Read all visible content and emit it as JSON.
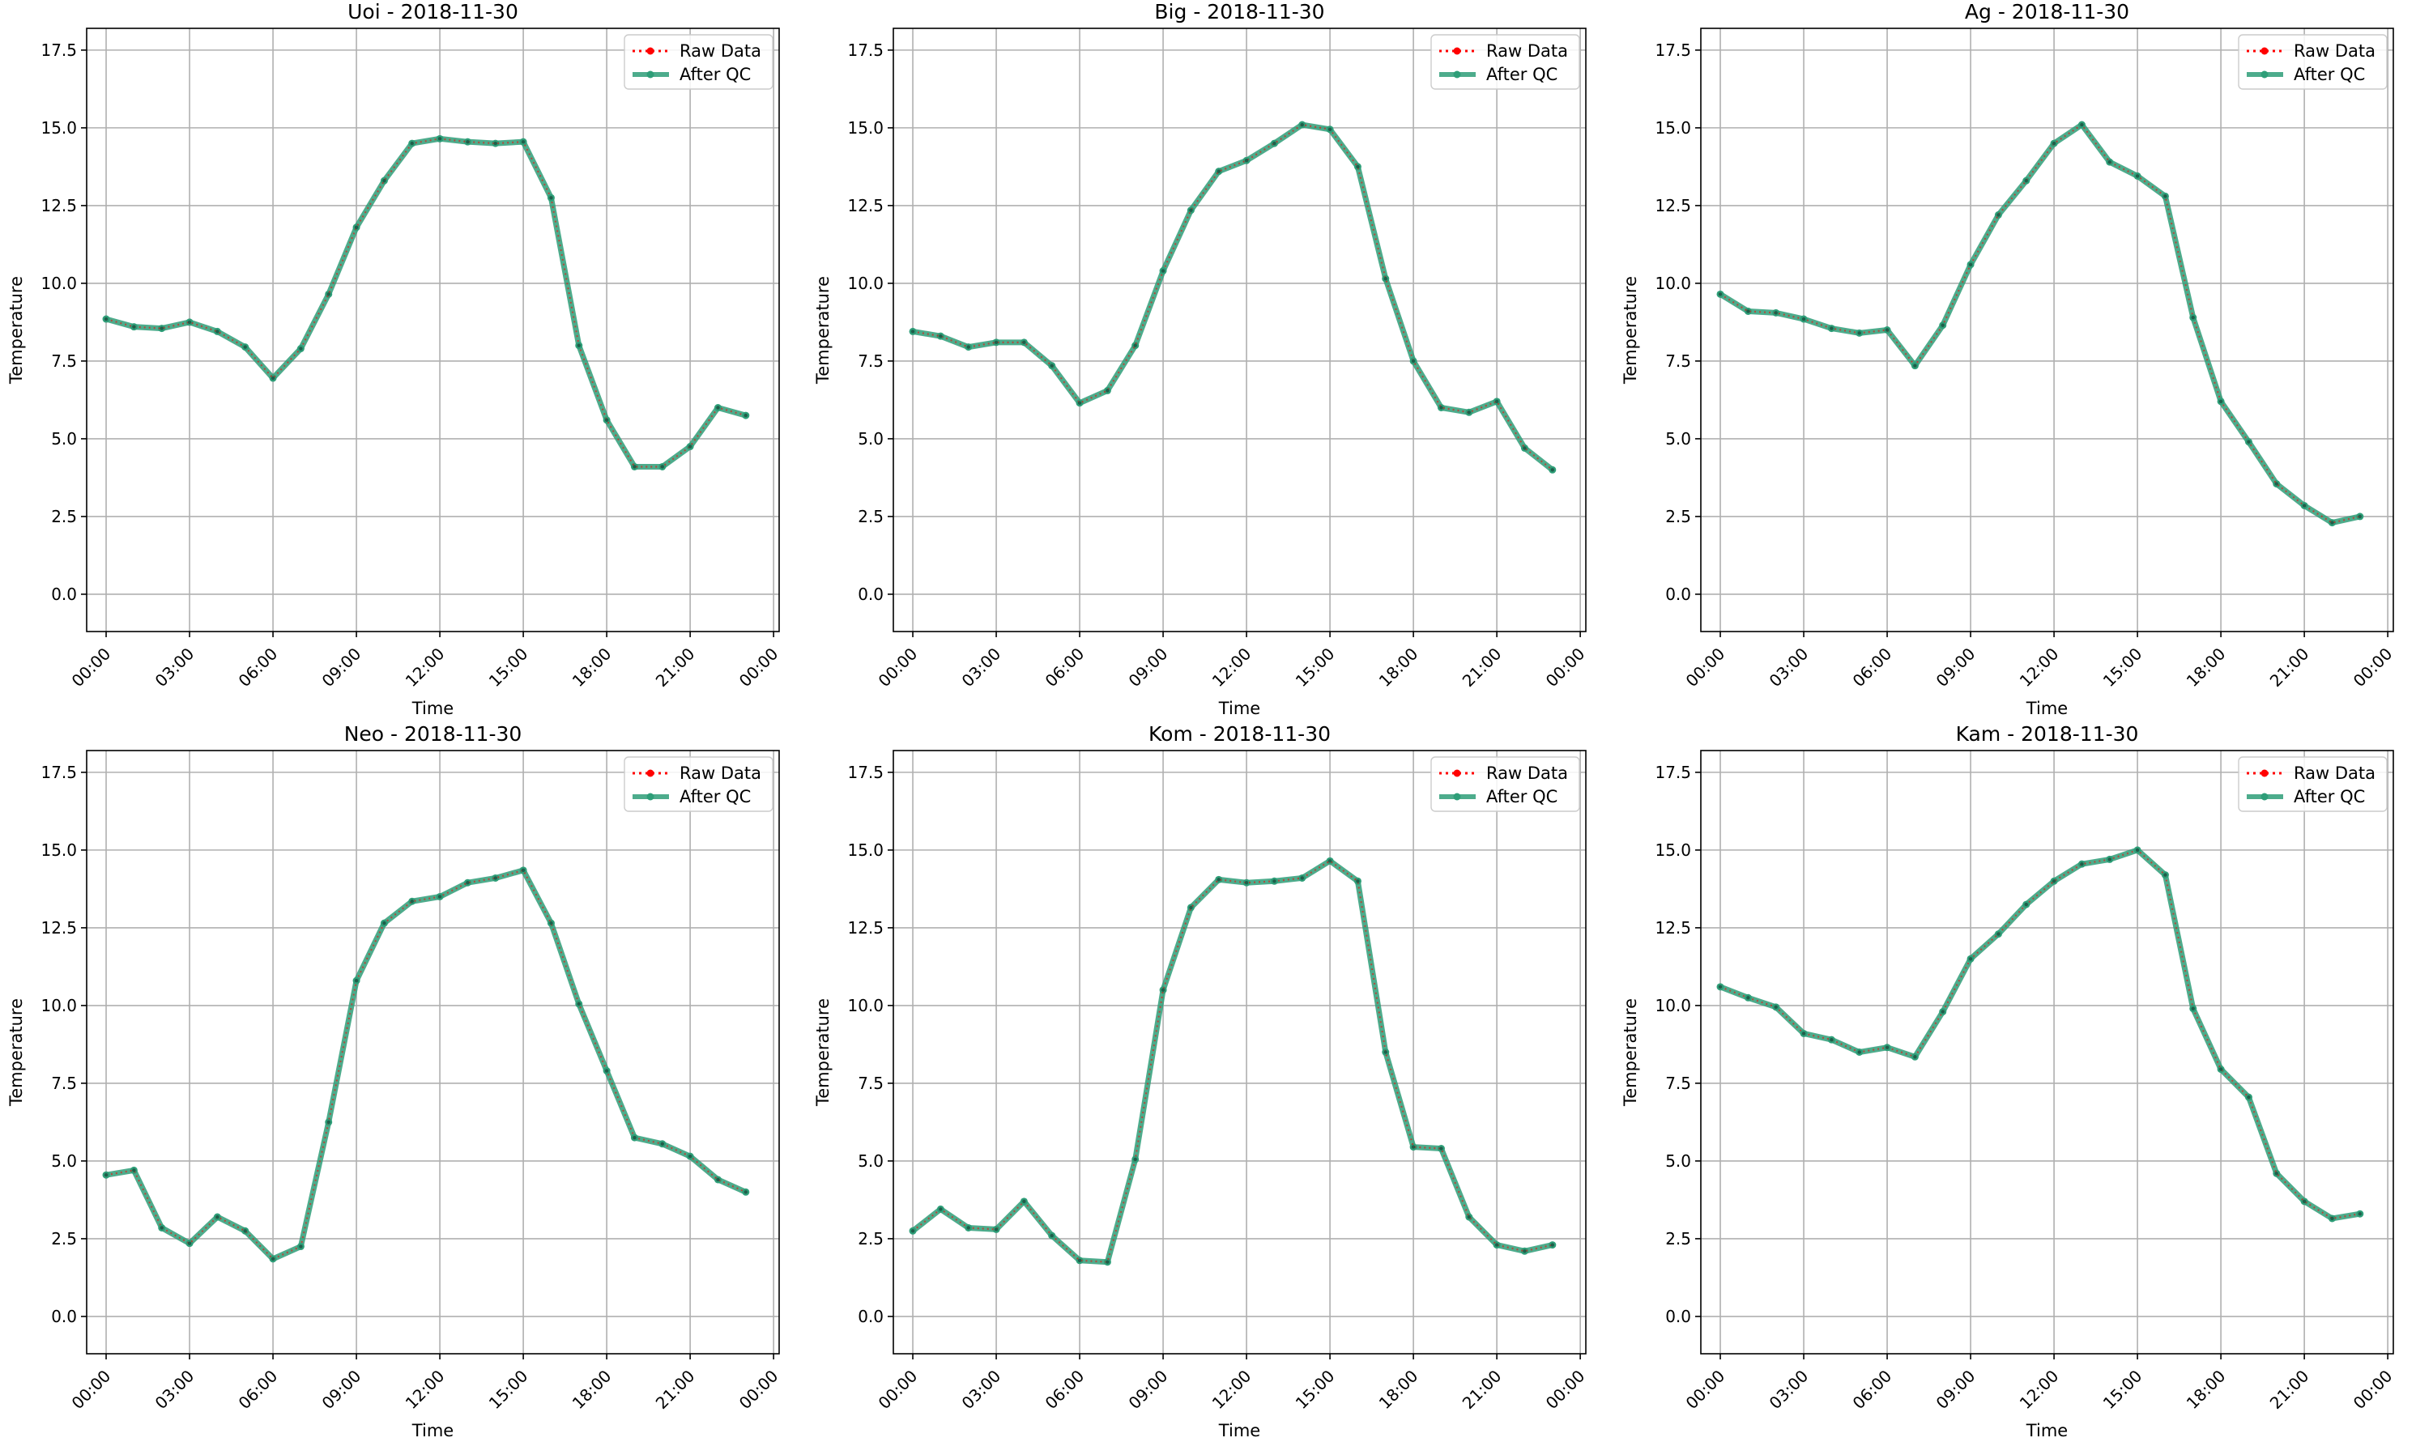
{
  "colors": {
    "raw": "#ff0000",
    "qc": "#2e9e78",
    "grid": "#b0b0b0",
    "axis": "#000000",
    "legend_border": "#cccccc"
  },
  "chart_data": [
    {
      "type": "line",
      "title": "Uoi - 2018-11-30",
      "xlabel": "Time",
      "ylabel": "Temperature",
      "ylim": [
        -1.2,
        18.2
      ],
      "xlim": [
        -0.7,
        24.2
      ],
      "grid": true,
      "legend": "top-right",
      "x": [
        0,
        1,
        2,
        3,
        4,
        5,
        6,
        7,
        8,
        9,
        10,
        11,
        12,
        13,
        14,
        15,
        16,
        17,
        18,
        19,
        20,
        21,
        22,
        23
      ],
      "x_ticks": [
        "00:00",
        "03:00",
        "06:00",
        "09:00",
        "12:00",
        "15:00",
        "18:00",
        "21:00",
        "00:00"
      ],
      "y_ticks": [
        "0.0",
        "2.5",
        "5.0",
        "7.5",
        "10.0",
        "12.5",
        "15.0",
        "17.5"
      ],
      "series": [
        {
          "name": "Raw Data",
          "values": [
            8.85,
            8.6,
            8.55,
            8.75,
            8.45,
            7.95,
            6.95,
            7.9,
            9.65,
            11.8,
            13.3,
            14.5,
            14.65,
            14.55,
            14.5,
            14.55,
            12.75,
            8.0,
            5.6,
            4.1,
            4.1,
            4.75,
            6.0,
            5.75
          ]
        },
        {
          "name": "After QC",
          "values": [
            8.85,
            8.6,
            8.55,
            8.75,
            8.45,
            7.95,
            6.95,
            7.9,
            9.65,
            11.8,
            13.3,
            14.5,
            14.65,
            14.55,
            14.5,
            14.55,
            12.75,
            8.0,
            5.6,
            4.1,
            4.1,
            4.75,
            6.0,
            5.75
          ]
        }
      ]
    },
    {
      "type": "line",
      "title": "Big - 2018-11-30",
      "xlabel": "Time",
      "ylabel": "Temperature",
      "ylim": [
        -1.2,
        18.2
      ],
      "xlim": [
        -0.7,
        24.2
      ],
      "grid": true,
      "legend": "top-right",
      "x": [
        0,
        1,
        2,
        3,
        4,
        5,
        6,
        7,
        8,
        9,
        10,
        11,
        12,
        13,
        14,
        15,
        16,
        17,
        18,
        19,
        20,
        21,
        22,
        23
      ],
      "x_ticks": [
        "00:00",
        "03:00",
        "06:00",
        "09:00",
        "12:00",
        "15:00",
        "18:00",
        "21:00",
        "00:00"
      ],
      "y_ticks": [
        "0.0",
        "2.5",
        "5.0",
        "7.5",
        "10.0",
        "12.5",
        "15.0",
        "17.5"
      ],
      "series": [
        {
          "name": "Raw Data",
          "values": [
            8.45,
            8.3,
            7.95,
            8.1,
            8.1,
            7.35,
            6.15,
            6.55,
            8.0,
            10.4,
            12.35,
            13.6,
            13.95,
            14.5,
            15.1,
            14.95,
            13.75,
            10.15,
            7.5,
            6.0,
            5.85,
            6.2,
            4.7,
            4.0
          ]
        },
        {
          "name": "After QC",
          "values": [
            8.45,
            8.3,
            7.95,
            8.1,
            8.1,
            7.35,
            6.15,
            6.55,
            8.0,
            10.4,
            12.35,
            13.6,
            13.95,
            14.5,
            15.1,
            14.95,
            13.75,
            10.15,
            7.5,
            6.0,
            5.85,
            6.2,
            4.7,
            4.0
          ]
        }
      ]
    },
    {
      "type": "line",
      "title": "Ag - 2018-11-30",
      "xlabel": "Time",
      "ylabel": "Temperature",
      "ylim": [
        -1.2,
        18.2
      ],
      "xlim": [
        -0.7,
        24.2
      ],
      "grid": true,
      "legend": "top-right",
      "x": [
        0,
        1,
        2,
        3,
        4,
        5,
        6,
        7,
        8,
        9,
        10,
        11,
        12,
        13,
        14,
        15,
        16,
        17,
        18,
        19,
        20,
        21,
        22,
        23
      ],
      "x_ticks": [
        "00:00",
        "03:00",
        "06:00",
        "09:00",
        "12:00",
        "15:00",
        "18:00",
        "21:00",
        "00:00"
      ],
      "y_ticks": [
        "0.0",
        "2.5",
        "5.0",
        "7.5",
        "10.0",
        "12.5",
        "15.0",
        "17.5"
      ],
      "series": [
        {
          "name": "Raw Data",
          "values": [
            9.65,
            9.1,
            9.05,
            8.85,
            8.55,
            8.4,
            8.5,
            7.35,
            8.65,
            10.6,
            12.2,
            13.3,
            14.5,
            15.1,
            13.9,
            13.45,
            12.8,
            8.9,
            6.2,
            4.9,
            3.55,
            2.85,
            2.3,
            2.5
          ]
        },
        {
          "name": "After QC",
          "values": [
            9.65,
            9.1,
            9.05,
            8.85,
            8.55,
            8.4,
            8.5,
            7.35,
            8.65,
            10.6,
            12.2,
            13.3,
            14.5,
            15.1,
            13.9,
            13.45,
            12.8,
            8.9,
            6.2,
            4.9,
            3.55,
            2.85,
            2.3,
            2.5
          ]
        }
      ]
    },
    {
      "type": "line",
      "title": "Neo - 2018-11-30",
      "xlabel": "Time",
      "ylabel": "Temperature",
      "ylim": [
        -1.2,
        18.2
      ],
      "xlim": [
        -0.7,
        24.2
      ],
      "grid": true,
      "legend": "top-right",
      "x": [
        0,
        1,
        2,
        3,
        4,
        5,
        6,
        7,
        8,
        9,
        10,
        11,
        12,
        13,
        14,
        15,
        16,
        17,
        18,
        19,
        20,
        21,
        22,
        23
      ],
      "x_ticks": [
        "00:00",
        "03:00",
        "06:00",
        "09:00",
        "12:00",
        "15:00",
        "18:00",
        "21:00",
        "00:00"
      ],
      "y_ticks": [
        "0.0",
        "2.5",
        "5.0",
        "7.5",
        "10.0",
        "12.5",
        "15.0",
        "17.5"
      ],
      "series": [
        {
          "name": "Raw Data",
          "values": [
            4.55,
            4.7,
            2.85,
            2.35,
            3.2,
            2.75,
            1.85,
            2.25,
            6.25,
            10.8,
            12.65,
            13.35,
            13.5,
            13.95,
            14.1,
            14.35,
            12.65,
            10.05,
            7.9,
            5.75,
            5.55,
            5.15,
            4.4,
            4.0
          ]
        },
        {
          "name": "After QC",
          "values": [
            4.55,
            4.7,
            2.85,
            2.35,
            3.2,
            2.75,
            1.85,
            2.25,
            6.25,
            10.8,
            12.65,
            13.35,
            13.5,
            13.95,
            14.1,
            14.35,
            12.65,
            10.05,
            7.9,
            5.75,
            5.55,
            5.15,
            4.4,
            4.0
          ]
        }
      ]
    },
    {
      "type": "line",
      "title": "Kom - 2018-11-30",
      "xlabel": "Time",
      "ylabel": "Temperature",
      "ylim": [
        -1.2,
        18.2
      ],
      "xlim": [
        -0.7,
        24.2
      ],
      "grid": true,
      "legend": "top-right",
      "x": [
        0,
        1,
        2,
        3,
        4,
        5,
        6,
        7,
        8,
        9,
        10,
        11,
        12,
        13,
        14,
        15,
        16,
        17,
        18,
        19,
        20,
        21,
        22,
        23
      ],
      "x_ticks": [
        "00:00",
        "03:00",
        "06:00",
        "09:00",
        "12:00",
        "15:00",
        "18:00",
        "21:00",
        "00:00"
      ],
      "y_ticks": [
        "0.0",
        "2.5",
        "5.0",
        "7.5",
        "10.0",
        "12.5",
        "15.0",
        "17.5"
      ],
      "series": [
        {
          "name": "Raw Data",
          "values": [
            2.75,
            3.45,
            2.85,
            2.8,
            3.7,
            2.6,
            1.8,
            1.75,
            5.05,
            10.5,
            13.15,
            14.05,
            13.95,
            14.0,
            14.1,
            14.65,
            14.0,
            8.5,
            5.45,
            5.4,
            3.2,
            2.3,
            2.1,
            2.3
          ]
        },
        {
          "name": "After QC",
          "values": [
            2.75,
            3.45,
            2.85,
            2.8,
            3.7,
            2.6,
            1.8,
            1.75,
            5.05,
            10.5,
            13.15,
            14.05,
            13.95,
            14.0,
            14.1,
            14.65,
            14.0,
            8.5,
            5.45,
            5.4,
            3.2,
            2.3,
            2.1,
            2.3
          ]
        }
      ]
    },
    {
      "type": "line",
      "title": "Kam - 2018-11-30",
      "xlabel": "Time",
      "ylabel": "Temperature",
      "ylim": [
        -1.2,
        18.2
      ],
      "xlim": [
        -0.7,
        24.2
      ],
      "grid": true,
      "legend": "top-right",
      "x": [
        0,
        1,
        2,
        3,
        4,
        5,
        6,
        7,
        8,
        9,
        10,
        11,
        12,
        13,
        14,
        15,
        16,
        17,
        18,
        19,
        20,
        21,
        22,
        23
      ],
      "x_ticks": [
        "00:00",
        "03:00",
        "06:00",
        "09:00",
        "12:00",
        "15:00",
        "18:00",
        "21:00",
        "00:00"
      ],
      "y_ticks": [
        "0.0",
        "2.5",
        "5.0",
        "7.5",
        "10.0",
        "12.5",
        "15.0",
        "17.5"
      ],
      "series": [
        {
          "name": "Raw Data",
          "values": [
            10.6,
            10.25,
            9.95,
            9.1,
            8.9,
            8.5,
            8.65,
            8.35,
            9.8,
            11.5,
            12.3,
            13.25,
            14.0,
            14.55,
            14.7,
            15.0,
            14.2,
            9.9,
            7.95,
            7.05,
            4.6,
            3.7,
            3.15,
            3.3
          ]
        },
        {
          "name": "After QC",
          "values": [
            10.6,
            10.25,
            9.95,
            9.1,
            8.9,
            8.5,
            8.65,
            8.35,
            9.8,
            11.5,
            12.3,
            13.25,
            14.0,
            14.55,
            14.7,
            15.0,
            14.2,
            9.9,
            7.95,
            7.05,
            4.6,
            3.7,
            3.15,
            3.3
          ]
        }
      ]
    }
  ]
}
